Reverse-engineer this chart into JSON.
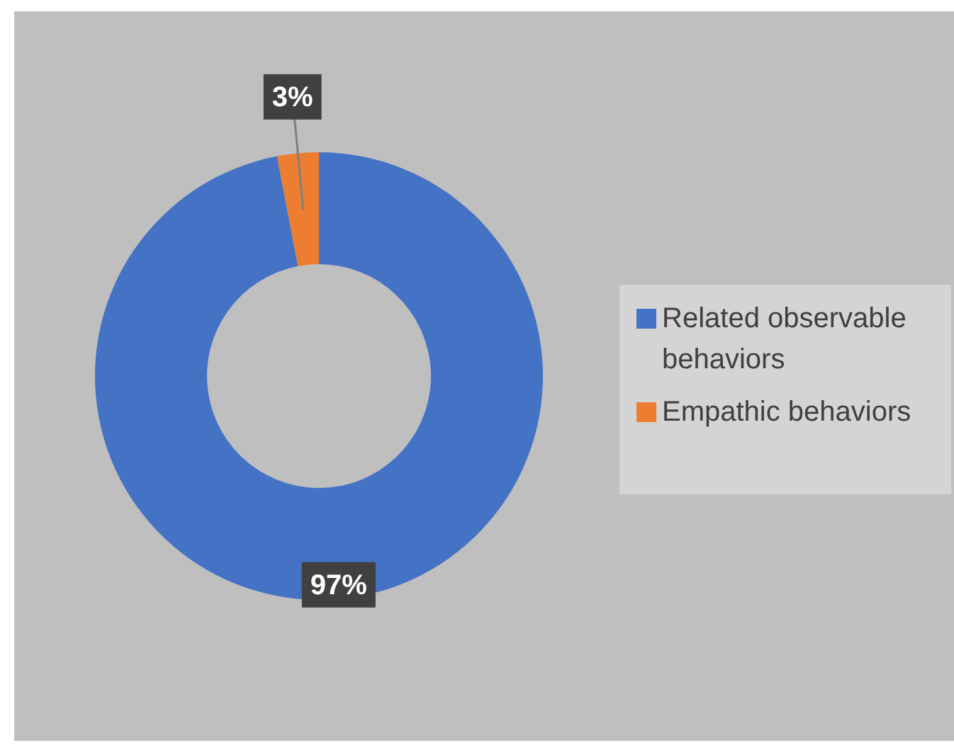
{
  "chart_data": {
    "type": "donut",
    "categories": [
      "Related observable behaviors",
      "Empathic behaviors"
    ],
    "values": [
      97,
      3
    ],
    "colors": [
      "#4472c4",
      "#ed7d31"
    ],
    "value_labels": [
      "97%",
      "3%"
    ],
    "legend": "right"
  }
}
